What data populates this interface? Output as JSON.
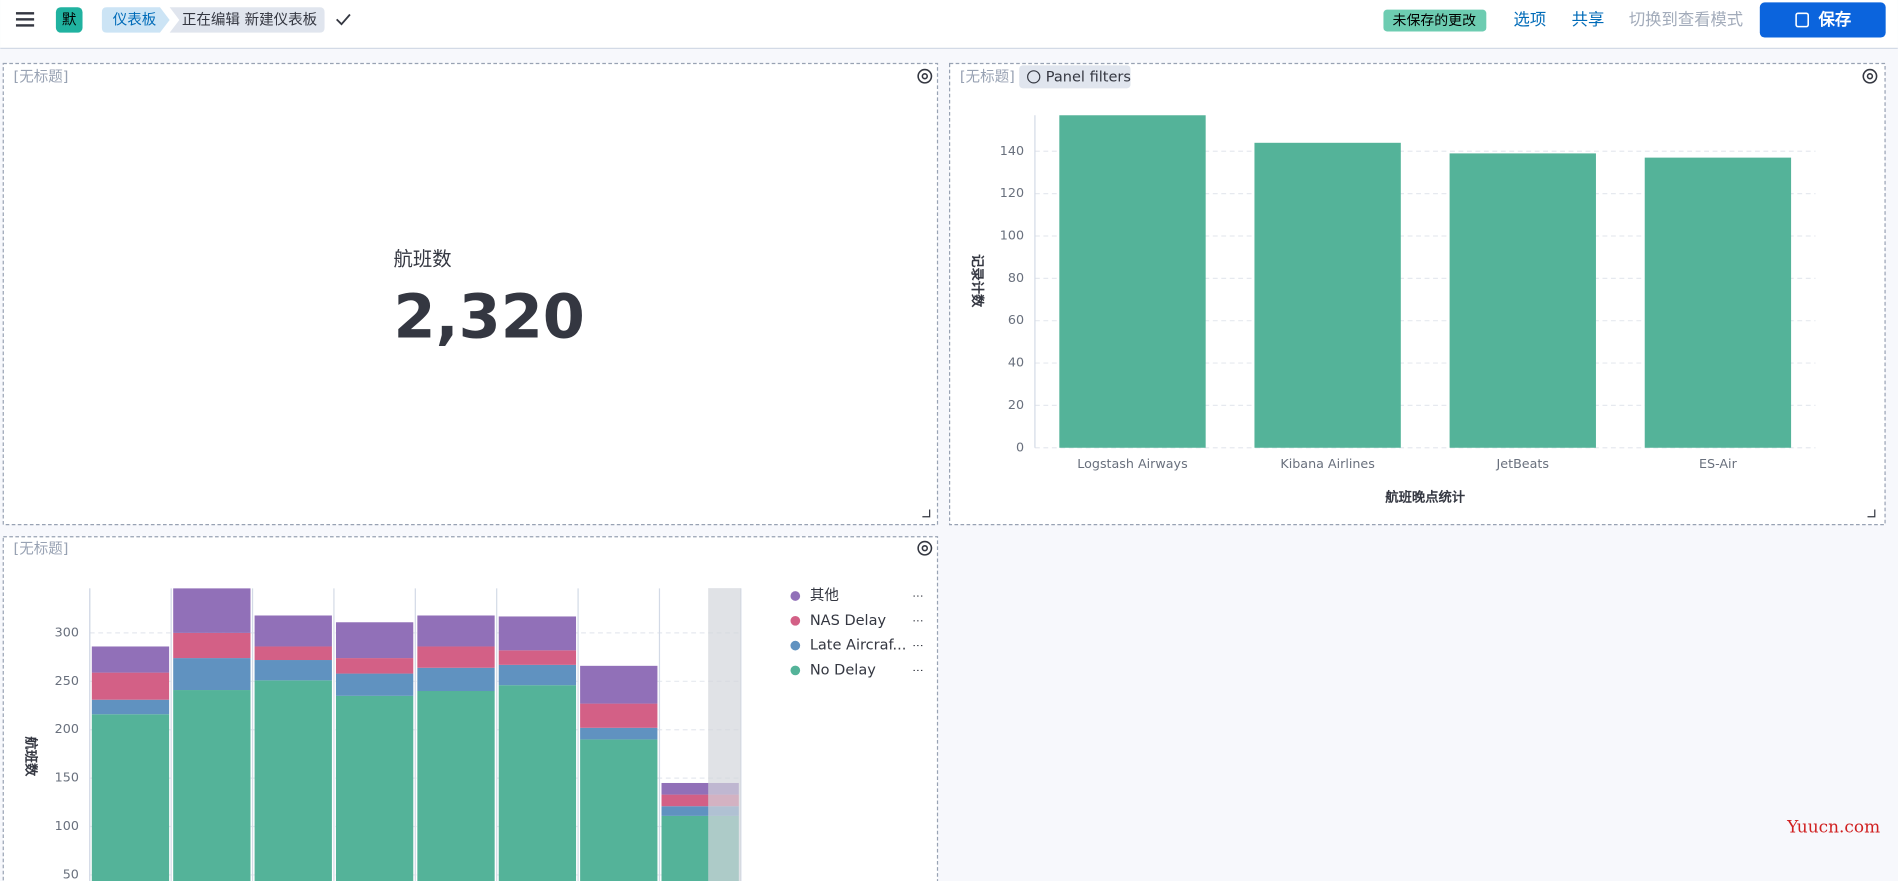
{
  "header": {
    "badge": "默",
    "breadcrumbs": [
      "仪表板",
      "正在编辑 新建仪表板"
    ],
    "unsaved": "未保存的更改",
    "links": [
      "选项",
      "共享",
      "切换到查看模式"
    ],
    "save": "保存"
  },
  "panels": [
    {
      "title": "[无标题]",
      "metric": {
        "label": "航班数",
        "value": "2,320"
      }
    },
    {
      "title": "[无标题]",
      "filter_badge": "Panel filters",
      "chart": {
        "type": "bar",
        "categories": [
          "Logstash Airways",
          "Kibana Airlines",
          "JetBeats",
          "ES-Air"
        ],
        "values": [
          157,
          144,
          139,
          137
        ],
        "color": "#54b399",
        "ylim": [
          0,
          157
        ],
        "yticks": [
          0,
          20,
          40,
          60,
          80,
          100,
          120,
          140
        ],
        "ylabel": "记录计数",
        "xlabel": "航班晚点统计",
        "grid": true
      }
    },
    {
      "title": "[无标题]",
      "chart": {
        "type": "stacked_bar",
        "categories": [
          null,
          null,
          null,
          null,
          null,
          null,
          null,
          null
        ],
        "series": [
          {
            "name": "No Delay",
            "color": "#54b399",
            "values": [
              216,
              241,
              251,
              235,
              240,
              246,
              190,
              111
            ]
          },
          {
            "name": "Late Aircraf...",
            "color": "#6092c0",
            "values": [
              15,
              33,
              21,
              23,
              24,
              21,
              12,
              10
            ]
          },
          {
            "name": "NAS Delay",
            "color": "#d36086",
            "values": [
              28,
              26,
              14,
              16,
              22,
              15,
              25,
              12
            ]
          },
          {
            "name": "其他",
            "color": "#9170b8",
            "values": [
              27,
              46,
              32,
              37,
              32,
              35,
              39,
              12
            ]
          }
        ],
        "ylim": [
          0,
          346
        ],
        "yticks": [
          50,
          100,
          150,
          200,
          250,
          300
        ],
        "ylabel": "航班数",
        "grid": true
      }
    }
  ],
  "watermark": "Yuucn.com"
}
